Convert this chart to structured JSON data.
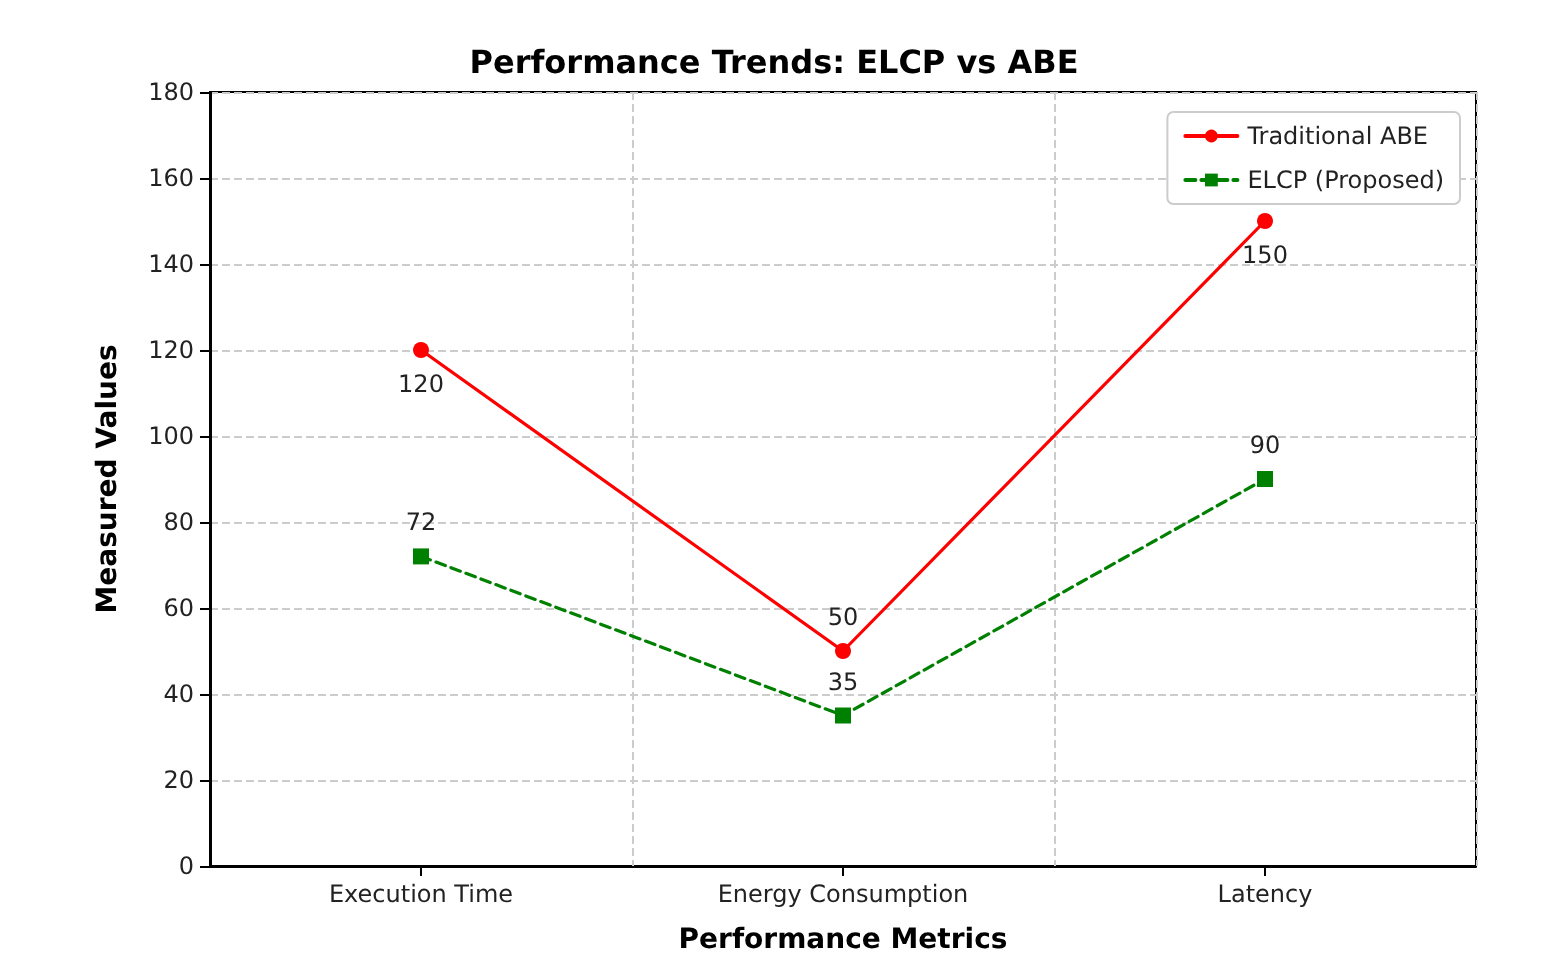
{
  "chart_data": {
    "type": "line",
    "title": "Performance Trends: ELCP vs ABE",
    "xlabel": "Performance Metrics",
    "ylabel": "Measured Values",
    "categories": [
      "Execution Time",
      "Energy Consumption",
      "Latency"
    ],
    "series": [
      {
        "name": "Traditional ABE",
        "color": "#ff0000",
        "values": [
          120,
          50,
          150
        ],
        "marker": "circle",
        "line_style": "solid"
      },
      {
        "name": "ELCP (Proposed)",
        "color": "#008000",
        "values": [
          72,
          35,
          90
        ],
        "marker": "square",
        "line_style": "dashed"
      }
    ],
    "ylim": [
      0,
      180
    ],
    "yticks": [
      0,
      20,
      40,
      60,
      80,
      100,
      120,
      140,
      160,
      180
    ],
    "grid": true,
    "legend": "top right",
    "data_labels": true
  }
}
